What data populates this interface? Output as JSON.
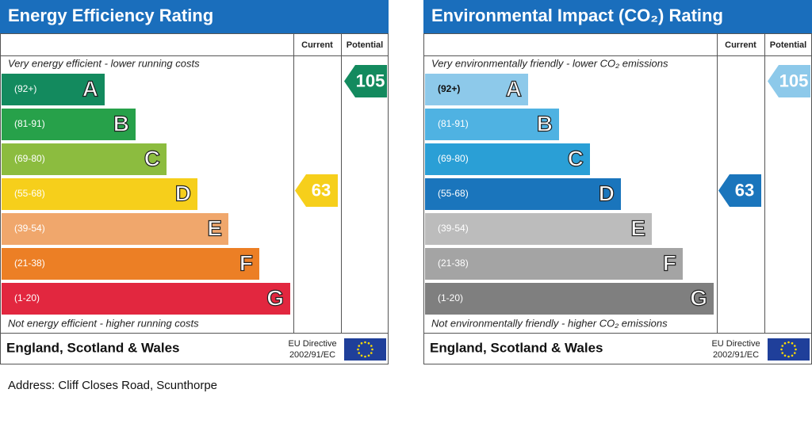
{
  "panels": [
    {
      "title": "Energy Efficiency Rating",
      "columns": [
        "Current",
        "Potential"
      ],
      "top_note": "Very energy efficient - lower running costs",
      "bottom_note": "Not energy efficient - higher running costs",
      "bands": [
        {
          "range": "(92+)",
          "letter": "A",
          "color": "#138a5e"
        },
        {
          "range": "(81-91)",
          "letter": "B",
          "color": "#27a14a"
        },
        {
          "range": "(69-80)",
          "letter": "C",
          "color": "#8cbc3f"
        },
        {
          "range": "(55-68)",
          "letter": "D",
          "color": "#f6cf1b"
        },
        {
          "range": "(39-54)",
          "letter": "E",
          "color": "#f0a76c"
        },
        {
          "range": "(21-38)",
          "letter": "F",
          "color": "#ec7f25"
        },
        {
          "range": "(1-20)",
          "letter": "G",
          "color": "#e2273f"
        }
      ],
      "current": 63,
      "potential": 105,
      "region": "England, Scotland & Wales",
      "directive": [
        "EU Directive",
        "2002/91/EC"
      ]
    },
    {
      "title": "Environmental Impact (CO₂) Rating",
      "columns": [
        "Current",
        "Potential"
      ],
      "top_note": "Very environmentally friendly - lower CO₂ emissions",
      "bottom_note": "Not environmentally friendly - higher CO₂ emissions",
      "bands": [
        {
          "range": "(92+)",
          "letter": "A",
          "color": "#8dc9ea"
        },
        {
          "range": "(81-91)",
          "letter": "B",
          "color": "#4fb2e2"
        },
        {
          "range": "(69-80)",
          "letter": "C",
          "color": "#2a9fd6"
        },
        {
          "range": "(55-68)",
          "letter": "D",
          "color": "#1a75bc"
        },
        {
          "range": "(39-54)",
          "letter": "E",
          "color": "#bcbcbc"
        },
        {
          "range": "(21-38)",
          "letter": "F",
          "color": "#a4a4a4"
        },
        {
          "range": "(1-20)",
          "letter": "G",
          "color": "#7f7f7f"
        }
      ],
      "current": 63,
      "potential": 105,
      "region": "England, Scotland & Wales",
      "directive": [
        "EU Directive",
        "2002/91/EC"
      ]
    }
  ],
  "address": "Address: Cliff Closes Road, Scunthorpe"
}
